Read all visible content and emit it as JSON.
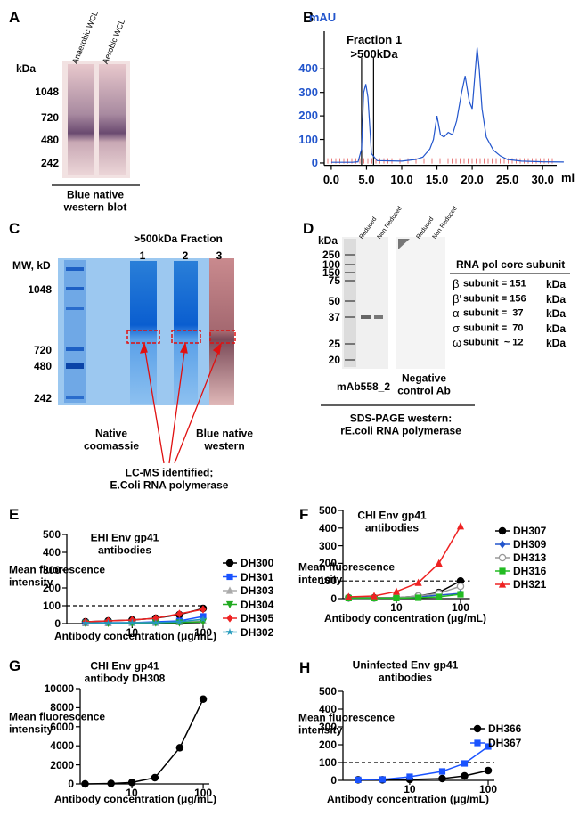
{
  "panel_labels": [
    "A",
    "B",
    "C",
    "D",
    "E",
    "F",
    "G",
    "H"
  ],
  "gel_a": {
    "lanes": [
      "Anaerobic WCL",
      "Aerobic WCL"
    ],
    "unit": "kDa",
    "markers": [
      1048,
      720,
      480,
      242
    ],
    "caption": "Blue native\nwestern blot"
  },
  "gel_c": {
    "title": ">500kDa Fraction",
    "lanes": [
      1,
      2,
      3
    ],
    "unit": "MW, kD",
    "markers": [
      1048,
      720,
      480,
      242
    ],
    "captions": [
      "Native\ncoomassie",
      "Blue native\nwestern"
    ],
    "note": "LC-MS identified;\nE.Coli RNA polymerase"
  },
  "gel_d": {
    "unit": "kDa",
    "markers": [
      250,
      100,
      150,
      75,
      50,
      37,
      25,
      20
    ],
    "lanes": [
      "Reduced",
      "Non Reduced",
      "Reduced",
      "Non Reduced"
    ],
    "blots": [
      "mAb558_2",
      "Negative\ncontrol Ab"
    ],
    "caption": "SDS-PAGE western:\nrE.coli RNA polymerase",
    "table": {
      "title": "RNA pol core subunit",
      "rows": [
        [
          "β",
          "subunit = 151",
          "kDa"
        ],
        [
          "β'",
          "subunit = 156",
          "kDa"
        ],
        [
          "α",
          "subunit =  37",
          "kDa"
        ],
        [
          "σ",
          "subunit =  70",
          "kDa"
        ],
        [
          "ω",
          "subunit  ~ 12",
          "kDa"
        ]
      ]
    }
  },
  "chart_data": [
    {
      "type": "line",
      "y_label": "mAU",
      "x_label": "ml",
      "annotation": "Fraction 1\n>500kDa",
      "color": "#2255cc",
      "y_axis_color": "#2255cc",
      "x": [
        0,
        1.5,
        3,
        3.8,
        4.3,
        4.6,
        4.9,
        5.2,
        5.7,
        6.5,
        10,
        12,
        13,
        14,
        14.5,
        15,
        15.5,
        16,
        16.6,
        17.2,
        17.8,
        18.5,
        19,
        19.6,
        20,
        20.4,
        20.7,
        21,
        21.4,
        22,
        23,
        24,
        25,
        27,
        30,
        33
      ],
      "values": [
        3,
        3,
        3,
        5,
        60,
        300,
        335,
        280,
        40,
        10,
        8,
        15,
        25,
        60,
        100,
        200,
        120,
        110,
        130,
        120,
        180,
        300,
        370,
        260,
        230,
        380,
        490,
        400,
        230,
        110,
        55,
        30,
        15,
        8,
        5,
        4
      ],
      "vlines": [
        4.3,
        6.0
      ],
      "xlim": [
        -1,
        32
      ],
      "xticks": [
        {
          "value": 0,
          "label": "0.0"
        },
        {
          "value": 5,
          "label": "5.0"
        },
        {
          "value": 10,
          "label": "10.0"
        },
        {
          "value": 15,
          "label": "15.0"
        },
        {
          "value": 20,
          "label": "20.0"
        },
        {
          "value": 25,
          "label": "25.0"
        },
        {
          "value": 30,
          "label": "30.0"
        }
      ],
      "ylim": [
        -10,
        560
      ],
      "yticks": [
        0,
        100,
        200,
        300,
        400
      ]
    },
    {
      "type": "line",
      "title": "EHI Env gp41\nantibodies",
      "y_label": "Mean fluorescence\nintensity",
      "x_label": "Antibody concentration (μg/mL)",
      "log_x": true,
      "x": [
        2.2,
        4.6,
        10,
        21.5,
        46.4,
        100
      ],
      "xlim": [
        1.2,
        106
      ],
      "xticks": [
        10,
        100
      ],
      "ylim": [
        0,
        500
      ],
      "yticks": [
        0,
        100,
        200,
        300,
        400,
        500
      ],
      "reference_line": 100,
      "series": [
        {
          "name": "DH300",
          "color": "#000000",
          "marker": "circle",
          "values": [
            10,
            15,
            20,
            30,
            50,
            85
          ]
        },
        {
          "name": "DH301",
          "color": "#1a53ff",
          "marker": "square",
          "values": [
            5,
            5,
            5,
            10,
            15,
            40
          ]
        },
        {
          "name": "DH303",
          "color": "#aaaaaa",
          "marker": "triangle",
          "values": [
            3,
            3,
            5,
            5,
            8,
            15
          ]
        },
        {
          "name": "DH304",
          "color": "#22aa22",
          "marker": "triangle-down",
          "values": [
            3,
            3,
            3,
            5,
            5,
            10
          ]
        },
        {
          "name": "DH305",
          "color": "#ee2222",
          "marker": "diamond",
          "values": [
            10,
            15,
            20,
            30,
            55,
            80
          ]
        },
        {
          "name": "DH302",
          "color": "#2299bb",
          "marker": "star",
          "values": [
            3,
            3,
            5,
            5,
            10,
            25
          ]
        }
      ]
    },
    {
      "type": "line",
      "title": "CHI Env gp41\nantibodies",
      "y_label": "Mean fluorescence\nintensity",
      "x_label": "Antibody concentration (μg/mL)",
      "log_x": true,
      "x": [
        1.8,
        4.5,
        10,
        22,
        46,
        100
      ],
      "xlim": [
        1.47,
        140
      ],
      "xticks": [
        10,
        100
      ],
      "ylim": [
        0,
        500
      ],
      "yticks": [
        0,
        100,
        200,
        300,
        400,
        500
      ],
      "reference_line": 100,
      "series": [
        {
          "name": "DH307",
          "color": "#000000",
          "marker": "circle",
          "values": [
            5,
            5,
            5,
            15,
            35,
            100
          ]
        },
        {
          "name": "DH309",
          "color": "#2255cc",
          "marker": "diamond",
          "values": [
            3,
            3,
            5,
            10,
            20,
            30
          ]
        },
        {
          "name": "DH313",
          "color": "#999999",
          "marker": "open-circle",
          "values": [
            3,
            3,
            5,
            15,
            30,
            70
          ]
        },
        {
          "name": "DH316",
          "color": "#22bb22",
          "marker": "square",
          "values": [
            3,
            3,
            3,
            5,
            10,
            25
          ]
        },
        {
          "name": "DH321",
          "color": "#ee2222",
          "marker": "triangle",
          "values": [
            10,
            15,
            40,
            90,
            200,
            410
          ]
        }
      ]
    },
    {
      "type": "line",
      "title": "CHI Env gp41\nantibody DH308",
      "y_label": "Mean fluorescence\nintensity",
      "x_label": "Antibody concentration (μg/mL)",
      "log_x": true,
      "x": [
        2.2,
        5.1,
        10,
        21,
        47,
        100
      ],
      "xlim": [
        1.88,
        122
      ],
      "xticks": [
        10,
        100
      ],
      "ylim": [
        0,
        10000
      ],
      "yticks": [
        0,
        2000,
        4000,
        6000,
        8000,
        10000
      ],
      "series": [
        {
          "color": "#000000",
          "marker": "circle",
          "values": [
            0,
            50,
            150,
            650,
            3800,
            8900
          ]
        }
      ]
    },
    {
      "type": "line",
      "title": "Uninfected Env gp41\nantibodies",
      "y_label": "Mean fluorescence\nintensity",
      "x_label": "Antibody concentration (μg/mL)",
      "log_x": true,
      "x": [
        2.2,
        4.5,
        10,
        26,
        50,
        100
      ],
      "xlim": [
        1.41,
        120
      ],
      "xticks": [
        10,
        100
      ],
      "ylim": [
        0,
        500
      ],
      "yticks": [
        0,
        100,
        200,
        300,
        400,
        500
      ],
      "reference_line": 100,
      "series": [
        {
          "name": "DH366",
          "color": "#000000",
          "marker": "circle",
          "values": [
            3,
            3,
            5,
            10,
            25,
            55
          ]
        },
        {
          "name": "DH367",
          "color": "#1a53ff",
          "marker": "square",
          "values": [
            3,
            5,
            20,
            50,
            95,
            190
          ]
        }
      ]
    }
  ]
}
